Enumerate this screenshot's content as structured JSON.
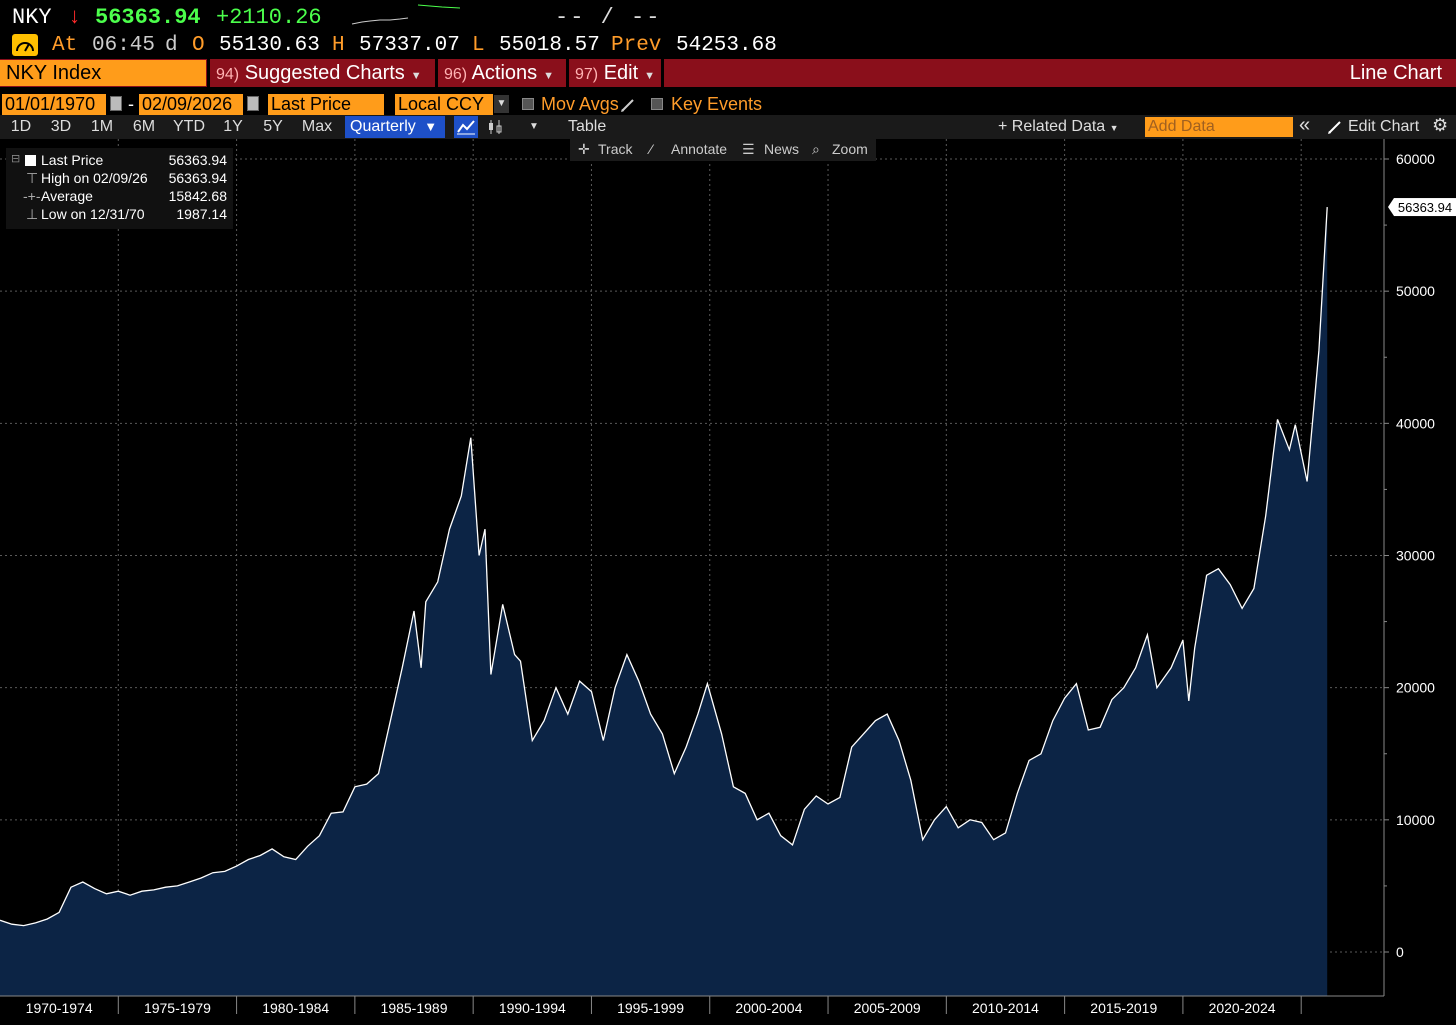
{
  "header": {
    "ticker": "NKY",
    "arrow": "↓",
    "last_price": "56363.94",
    "change": "+2110.26",
    "bid_ask": "-- / --"
  },
  "quote": {
    "at_label": "At",
    "time": "06:45",
    "d_label": "d",
    "open_label": "O",
    "open": "55130.63",
    "high_label": "H",
    "high": "57337.07",
    "low_label": "L",
    "low": "55018.57",
    "prev_label": "Prev",
    "prev": "54253.68"
  },
  "menubar": {
    "security": "NKY Index",
    "suggested_num": "94)",
    "suggested": "Suggested Charts",
    "actions_num": "96)",
    "actions": "Actions",
    "edit_num": "97)",
    "edit": "Edit",
    "title": "Line Chart"
  },
  "settings": {
    "start_date": "01/01/1970",
    "end_date": "02/09/2026",
    "field": "Last Price",
    "currency": "Local CCY",
    "mov_avgs": "Mov Avgs",
    "key_events": "Key Events"
  },
  "toolbar": {
    "periods": [
      "1D",
      "3D",
      "1M",
      "6M",
      "YTD",
      "1Y",
      "5Y",
      "Max"
    ],
    "frequency": "Quarterly",
    "table": "Table",
    "related_data": "+ Related Data",
    "add_data_placeholder": "Add Data",
    "edit_chart": "Edit Chart"
  },
  "tools": {
    "track": "Track",
    "annotate": "Annotate",
    "news": "News",
    "zoom": "Zoom"
  },
  "legend": {
    "last_label": "Last Price",
    "last_value": "56363.94",
    "high_label": "High on 02/09/26",
    "high_value": "56363.94",
    "avg_label": "Average",
    "avg_value": "15842.68",
    "low_label": "Low on 12/31/70",
    "low_value": "1987.14"
  },
  "colors": {
    "up": "#4cff4c",
    "down": "#ff2a2a",
    "accent_orange": "#ff9c1a",
    "menu_red": "#8a0f1b",
    "area_fill": "#0c2445"
  },
  "chart_data": {
    "type": "area",
    "ylim": [
      0,
      60000
    ],
    "yticks": [
      0,
      10000,
      20000,
      30000,
      40000,
      50000,
      60000
    ],
    "ytick_labels": [
      "0",
      "10000",
      "20000",
      "30000",
      "40000",
      "50000",
      "60000"
    ],
    "xlim": [
      1970.0,
      2028.5
    ],
    "x_groups": [
      "1970-1974",
      "1975-1979",
      "1980-1984",
      "1985-1989",
      "1990-1994",
      "1995-1999",
      "2000-2004",
      "2005-2009",
      "2010-2014",
      "2015-2019",
      "2020-2024"
    ],
    "last_value_label": "56363.94",
    "grid": true,
    "series": [
      {
        "values": [
          [
            1970.0,
            2400
          ],
          [
            1970.5,
            2100
          ],
          [
            1971.0,
            2000
          ],
          [
            1971.5,
            2200
          ],
          [
            1972.0,
            2500
          ],
          [
            1972.5,
            3000
          ],
          [
            1973.0,
            4900
          ],
          [
            1973.5,
            5300
          ],
          [
            1974.0,
            4800
          ],
          [
            1974.5,
            4400
          ],
          [
            1975.0,
            4600
          ],
          [
            1975.5,
            4300
          ],
          [
            1976.0,
            4600
          ],
          [
            1976.5,
            4700
          ],
          [
            1977.0,
            4900
          ],
          [
            1977.5,
            5000
          ],
          [
            1978.0,
            5300
          ],
          [
            1978.5,
            5600
          ],
          [
            1979.0,
            6000
          ],
          [
            1979.5,
            6100
          ],
          [
            1980.0,
            6500
          ],
          [
            1980.5,
            7000
          ],
          [
            1981.0,
            7300
          ],
          [
            1981.5,
            7800
          ],
          [
            1982.0,
            7200
          ],
          [
            1982.5,
            7000
          ],
          [
            1983.0,
            8000
          ],
          [
            1983.5,
            8800
          ],
          [
            1984.0,
            10500
          ],
          [
            1984.5,
            10600
          ],
          [
            1985.0,
            12500
          ],
          [
            1985.5,
            12700
          ],
          [
            1986.0,
            13500
          ],
          [
            1986.5,
            17500
          ],
          [
            1987.0,
            21500
          ],
          [
            1987.5,
            25800
          ],
          [
            1987.8,
            21500
          ],
          [
            1988.0,
            26500
          ],
          [
            1988.5,
            28000
          ],
          [
            1989.0,
            32000
          ],
          [
            1989.5,
            34500
          ],
          [
            1989.9,
            38915
          ],
          [
            1990.25,
            30000
          ],
          [
            1990.5,
            32000
          ],
          [
            1990.75,
            21000
          ],
          [
            1991.25,
            26300
          ],
          [
            1991.75,
            22500
          ],
          [
            1992.0,
            22000
          ],
          [
            1992.5,
            16000
          ],
          [
            1993.0,
            17500
          ],
          [
            1993.5,
            20000
          ],
          [
            1994.0,
            18000
          ],
          [
            1994.5,
            20500
          ],
          [
            1995.0,
            19700
          ],
          [
            1995.5,
            16000
          ],
          [
            1996.0,
            20000
          ],
          [
            1996.5,
            22500
          ],
          [
            1997.0,
            20500
          ],
          [
            1997.5,
            18000
          ],
          [
            1998.0,
            16500
          ],
          [
            1998.5,
            13500
          ],
          [
            1999.0,
            15500
          ],
          [
            1999.5,
            18000
          ],
          [
            1999.9,
            20300
          ],
          [
            2000.5,
            16500
          ],
          [
            2001.0,
            12500
          ],
          [
            2001.5,
            12000
          ],
          [
            2002.0,
            10000
          ],
          [
            2002.5,
            10500
          ],
          [
            2003.0,
            8800
          ],
          [
            2003.5,
            8100
          ],
          [
            2004.0,
            10800
          ],
          [
            2004.5,
            11800
          ],
          [
            2005.0,
            11200
          ],
          [
            2005.5,
            11700
          ],
          [
            2006.0,
            15500
          ],
          [
            2006.5,
            16500
          ],
          [
            2007.0,
            17500
          ],
          [
            2007.5,
            18000
          ],
          [
            2008.0,
            16000
          ],
          [
            2008.5,
            13000
          ],
          [
            2009.0,
            8500
          ],
          [
            2009.5,
            10000
          ],
          [
            2010.0,
            11000
          ],
          [
            2010.5,
            9400
          ],
          [
            2011.0,
            10000
          ],
          [
            2011.5,
            9800
          ],
          [
            2012.0,
            8500
          ],
          [
            2012.5,
            9000
          ],
          [
            2013.0,
            12000
          ],
          [
            2013.5,
            14500
          ],
          [
            2014.0,
            15000
          ],
          [
            2014.5,
            17500
          ],
          [
            2015.0,
            19200
          ],
          [
            2015.5,
            20300
          ],
          [
            2016.0,
            16800
          ],
          [
            2016.5,
            17000
          ],
          [
            2017.0,
            19100
          ],
          [
            2017.5,
            20000
          ],
          [
            2018.0,
            21500
          ],
          [
            2018.5,
            24000
          ],
          [
            2018.9,
            20000
          ],
          [
            2019.5,
            21500
          ],
          [
            2020.0,
            23600
          ],
          [
            2020.25,
            19000
          ],
          [
            2020.5,
            23000
          ],
          [
            2021.0,
            28500
          ],
          [
            2021.5,
            29000
          ],
          [
            2022.0,
            27800
          ],
          [
            2022.5,
            26000
          ],
          [
            2023.0,
            27500
          ],
          [
            2023.5,
            33000
          ],
          [
            2024.0,
            40300
          ],
          [
            2024.5,
            38000
          ],
          [
            2024.75,
            39900
          ],
          [
            2025.25,
            35600
          ],
          [
            2025.5,
            40500
          ],
          [
            2025.75,
            45500
          ],
          [
            2026.1,
            56363.94
          ]
        ]
      }
    ]
  }
}
